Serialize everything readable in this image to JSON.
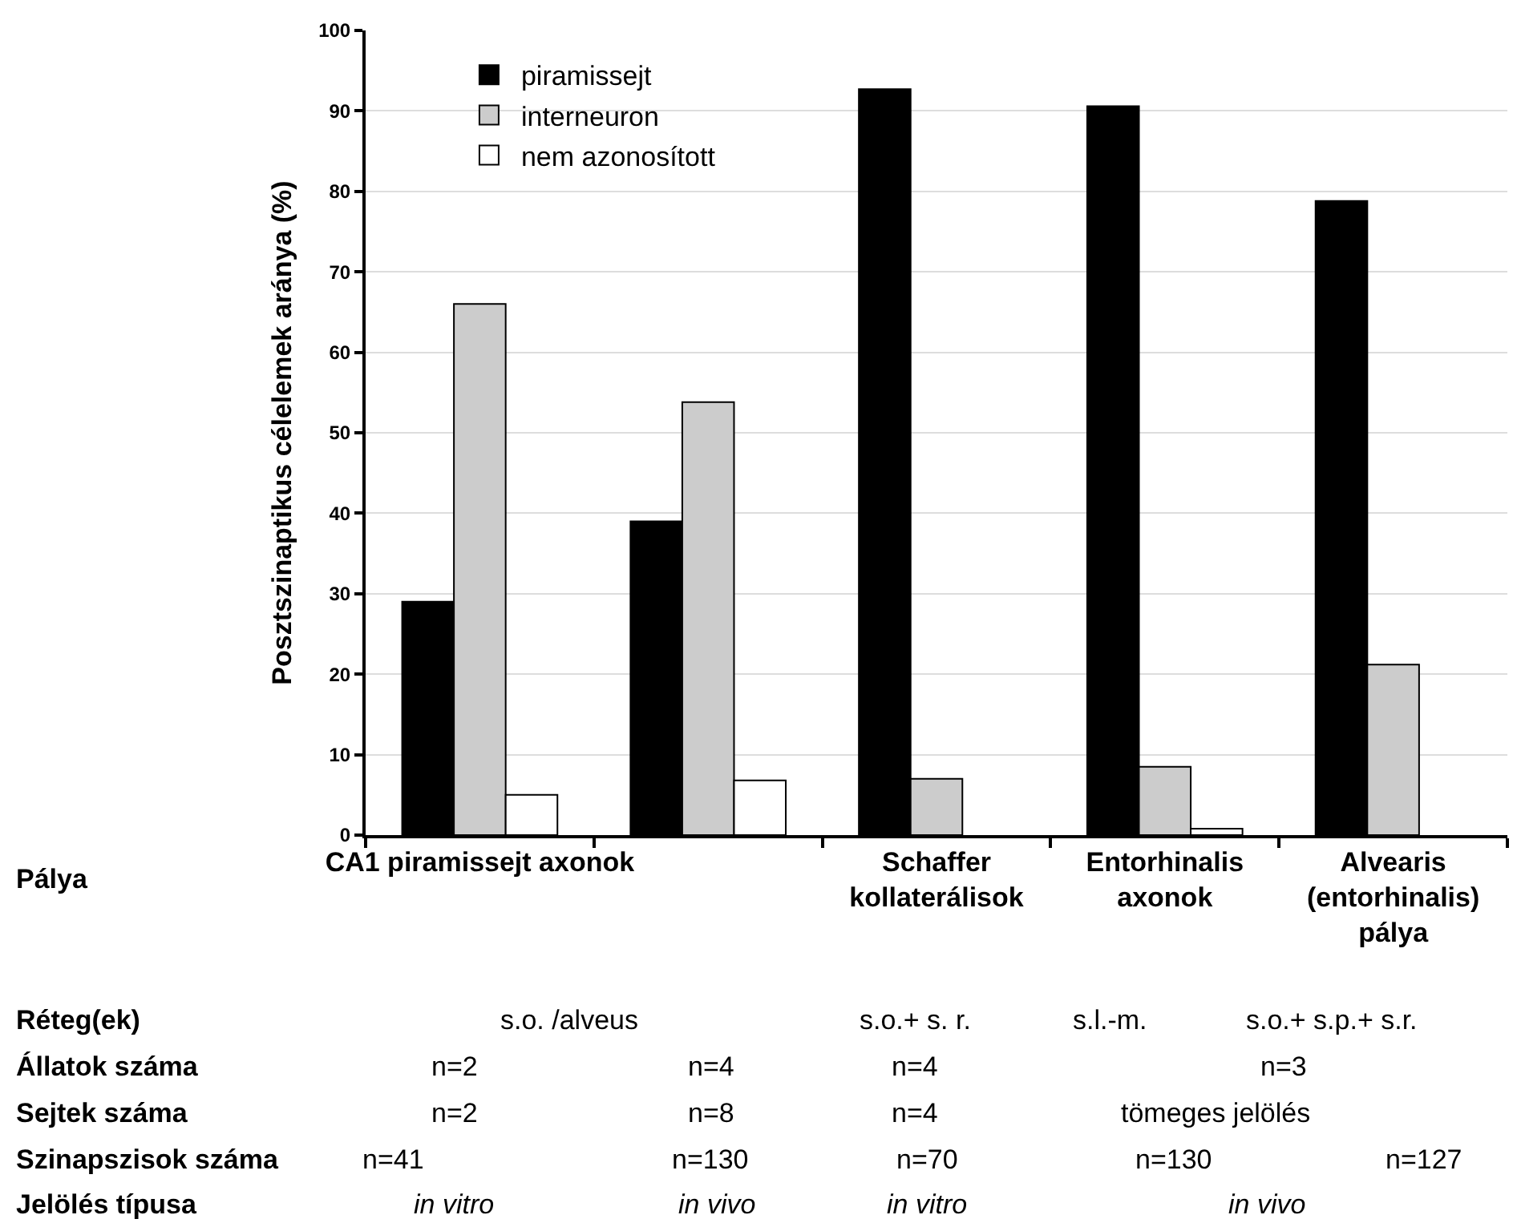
{
  "chart_data": {
    "type": "bar",
    "ylabel": "Posztszinaptikus célelemek aránya (%)",
    "categories": [
      "CA1 piramissejt axonok",
      null,
      "Schaffer kollaterálisok",
      "Entorhinalis axonok",
      "Alvearis (entorhinalis) pálya"
    ],
    "series": [
      {
        "name": "piramissejt",
        "color": "#000000",
        "values": [
          29,
          39,
          92.7,
          90.6,
          78.8
        ]
      },
      {
        "name": "interneuron",
        "color": "#cccccc",
        "values": [
          66,
          53.8,
          7,
          8.5,
          21.2
        ]
      },
      {
        "name": "nem azonosított",
        "color": "#ffffff",
        "values": [
          5,
          6.8,
          0,
          0.8,
          0
        ]
      }
    ],
    "ylim": [
      0,
      100
    ],
    "yticks": [
      0,
      10,
      20,
      30,
      40,
      50,
      60,
      70,
      80,
      90,
      100
    ],
    "grid": "y",
    "legend": "top left",
    "annotations": [
      "Pálya",
      "Réteg(ek)",
      "s.o. /alveus",
      "s.o.+ s. r.",
      "s.l.-m.",
      "s.o.+ s.p.+ s.r.",
      "Állatok száma",
      "n=2",
      "n=4",
      "n=4",
      "n=3",
      "Sejtek száma",
      "n=2",
      "n=8",
      "n=4",
      "tömeges jelölés",
      "Szinapszisok száma",
      "n=41",
      "n=130",
      "n=70",
      "n=130",
      "n=127",
      "Jelölés típusa",
      "in vitro",
      "in vivo",
      "in vitro",
      "in vivo"
    ]
  }
}
